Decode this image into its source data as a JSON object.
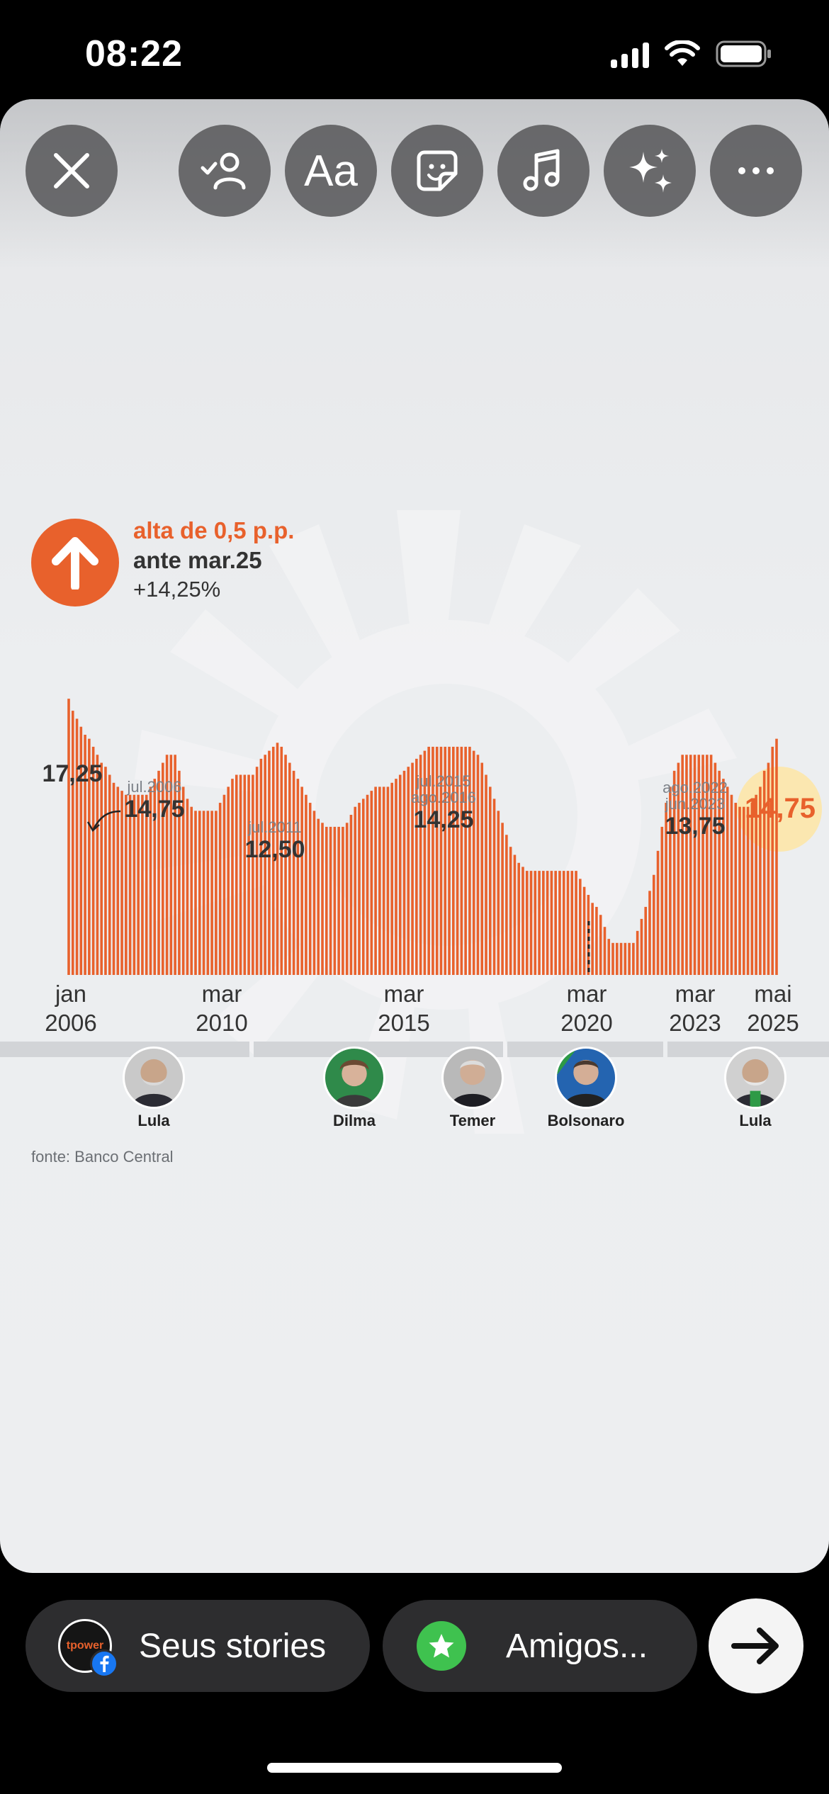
{
  "status": {
    "time": "08:22"
  },
  "toolbar": {
    "close": "close",
    "tag_people": "tag-people",
    "text_label": "Aa",
    "sticker": "sticker",
    "music": "music",
    "effects": "effects",
    "more": "more"
  },
  "badge": {
    "headline": "alta de 0,5 p.p.",
    "subline": "ante mar.25",
    "previous": "+14,25%",
    "accent": "#e8612c"
  },
  "chart_data": {
    "type": "bar",
    "title": "",
    "series_color": "#e8612c",
    "ylim": [
      0,
      18
    ],
    "annotations": [
      {
        "label": "",
        "value": "17,25"
      },
      {
        "label": "jul.2006",
        "value": "14,75"
      },
      {
        "label": "jul.2011",
        "value": "12,50"
      },
      {
        "label": "jul.2015",
        "label2": "ago.2016",
        "value": "14,25"
      },
      {
        "label": "ago.2022",
        "label2": "jun.2023",
        "value": "13,75"
      },
      {
        "label": "",
        "value": "14,75",
        "highlight": true
      }
    ],
    "x_ticks": [
      {
        "line1": "jan",
        "line2": "2006"
      },
      {
        "line1": "mar",
        "line2": "2010"
      },
      {
        "line1": "mar",
        "line2": "2015"
      },
      {
        "line1": "mar",
        "line2": "2020"
      },
      {
        "line1": "mar",
        "line2": "2023"
      },
      {
        "line1": "mai",
        "line2": "2025"
      }
    ],
    "values": [
      17.25,
      16.5,
      16.0,
      15.5,
      15.0,
      14.75,
      14.25,
      13.75,
      13.25,
      13.0,
      12.5,
      12.0,
      11.75,
      11.5,
      11.25,
      11.25,
      11.25,
      11.25,
      11.25,
      11.25,
      11.75,
      12.25,
      12.75,
      13.25,
      13.75,
      13.75,
      13.75,
      12.75,
      11.75,
      11.0,
      10.5,
      10.25,
      10.25,
      10.25,
      10.25,
      10.25,
      10.25,
      10.75,
      11.25,
      11.75,
      12.25,
      12.5,
      12.5,
      12.5,
      12.5,
      12.5,
      13.0,
      13.5,
      13.75,
      14.0,
      14.25,
      14.5,
      14.25,
      13.75,
      13.25,
      12.75,
      12.25,
      11.75,
      11.25,
      10.75,
      10.25,
      9.75,
      9.5,
      9.25,
      9.25,
      9.25,
      9.25,
      9.25,
      9.5,
      10.0,
      10.5,
      10.75,
      11.0,
      11.25,
      11.5,
      11.75,
      11.75,
      11.75,
      11.75,
      12.0,
      12.25,
      12.5,
      12.75,
      13.0,
      13.25,
      13.5,
      13.75,
      14.0,
      14.25,
      14.25,
      14.25,
      14.25,
      14.25,
      14.25,
      14.25,
      14.25,
      14.25,
      14.25,
      14.25,
      14.0,
      13.75,
      13.25,
      12.5,
      11.75,
      11.0,
      10.25,
      9.5,
      8.75,
      8.0,
      7.5,
      7.0,
      6.75,
      6.5,
      6.5,
      6.5,
      6.5,
      6.5,
      6.5,
      6.5,
      6.5,
      6.5,
      6.5,
      6.5,
      6.5,
      6.5,
      6.0,
      5.5,
      5.0,
      4.5,
      4.25,
      3.75,
      3.0,
      2.25,
      2.0,
      2.0,
      2.0,
      2.0,
      2.0,
      2.0,
      2.75,
      3.5,
      4.25,
      5.25,
      6.25,
      7.75,
      9.25,
      10.75,
      11.75,
      12.75,
      13.25,
      13.75,
      13.75,
      13.75,
      13.75,
      13.75,
      13.75,
      13.75,
      13.75,
      13.25,
      12.75,
      12.25,
      11.75,
      11.25,
      10.75,
      10.5,
      10.5,
      10.5,
      10.75,
      11.25,
      11.75,
      12.75,
      13.25,
      14.25,
      14.75
    ]
  },
  "presidents": [
    {
      "name": "Lula"
    },
    {
      "name": "Dilma"
    },
    {
      "name": "Temer"
    },
    {
      "name": "Bolsonaro"
    },
    {
      "name": "Lula"
    }
  ],
  "source": "fonte: Banco Central",
  "bottom": {
    "your_story": "Seus stories",
    "your_story_avatar": "tpower",
    "close_friends": "Amigos..."
  }
}
